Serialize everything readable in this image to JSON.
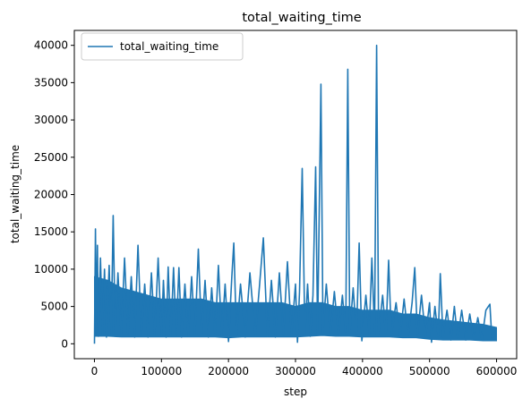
{
  "chart_data": {
    "type": "line",
    "title": "total_waiting_time",
    "xlabel": "step",
    "ylabel": "total_waiting_time",
    "xlim": [
      -30000,
      630000
    ],
    "ylim": [
      -2000,
      42000
    ],
    "xticks": [
      0,
      100000,
      200000,
      300000,
      400000,
      500000,
      600000
    ],
    "yticks": [
      0,
      5000,
      10000,
      15000,
      20000,
      25000,
      30000,
      35000,
      40000
    ],
    "grid": false,
    "legend": {
      "position": "top-left",
      "entries": [
        "total_waiting_time"
      ]
    },
    "series": [
      {
        "name": "total_waiting_time",
        "color": "#1f77b4",
        "points": [
          [
            0,
            0
          ],
          [
            1500,
            15400
          ],
          [
            3000,
            1500
          ],
          [
            4500,
            13200
          ],
          [
            6000,
            1000
          ],
          [
            9000,
            11500
          ],
          [
            12000,
            1300
          ],
          [
            15000,
            10000
          ],
          [
            18000,
            900
          ],
          [
            22000,
            10500
          ],
          [
            25000,
            1200
          ],
          [
            28000,
            17200
          ],
          [
            31000,
            1100
          ],
          [
            35000,
            9500
          ],
          [
            40000,
            1000
          ],
          [
            45000,
            11500
          ],
          [
            50000,
            1200
          ],
          [
            55000,
            9000
          ],
          [
            60000,
            900
          ],
          [
            65000,
            13200
          ],
          [
            70000,
            1100
          ],
          [
            75000,
            8000
          ],
          [
            80000,
            900
          ],
          [
            85000,
            9500
          ],
          [
            90000,
            1000
          ],
          [
            95000,
            11500
          ],
          [
            100000,
            1000
          ],
          [
            103000,
            8500
          ],
          [
            107000,
            900
          ],
          [
            110000,
            10300
          ],
          [
            114000,
            1000
          ],
          [
            118000,
            10200
          ],
          [
            122000,
            1100
          ],
          [
            126000,
            10200
          ],
          [
            130000,
            900
          ],
          [
            135000,
            8000
          ],
          [
            140000,
            1000
          ],
          [
            145000,
            9000
          ],
          [
            150000,
            1000
          ],
          [
            155000,
            12700
          ],
          [
            160000,
            1000
          ],
          [
            165000,
            8500
          ],
          [
            170000,
            900
          ],
          [
            175000,
            7500
          ],
          [
            180000,
            1000
          ],
          [
            185000,
            10500
          ],
          [
            190000,
            1000
          ],
          [
            195000,
            8000
          ],
          [
            200000,
            300
          ],
          [
            205000,
            9000
          ],
          [
            208000,
            13500
          ],
          [
            212000,
            1000
          ],
          [
            218000,
            8000
          ],
          [
            225000,
            900
          ],
          [
            232000,
            9500
          ],
          [
            240000,
            1000
          ],
          [
            246000,
            7500
          ],
          [
            252000,
            14200
          ],
          [
            258000,
            1000
          ],
          [
            264000,
            8500
          ],
          [
            270000,
            900
          ],
          [
            276000,
            9500
          ],
          [
            282000,
            1100
          ],
          [
            288000,
            11000
          ],
          [
            294000,
            1000
          ],
          [
            300000,
            8000
          ],
          [
            303000,
            200
          ],
          [
            306000,
            7000
          ],
          [
            310000,
            23500
          ],
          [
            314000,
            1200
          ],
          [
            318000,
            8000
          ],
          [
            322000,
            1000
          ],
          [
            326000,
            6500
          ],
          [
            330000,
            23700
          ],
          [
            333000,
            1300
          ],
          [
            338000,
            34800
          ],
          [
            341000,
            1400
          ],
          [
            346000,
            8000
          ],
          [
            352000,
            1200
          ],
          [
            358000,
            7000
          ],
          [
            364000,
            1100
          ],
          [
            370000,
            6500
          ],
          [
            375000,
            1200
          ],
          [
            378000,
            36800
          ],
          [
            381000,
            1400
          ],
          [
            386000,
            7500
          ],
          [
            391000,
            1100
          ],
          [
            395000,
            13500
          ],
          [
            399000,
            400
          ],
          [
            405000,
            6500
          ],
          [
            410000,
            1200
          ],
          [
            414000,
            11500
          ],
          [
            418000,
            1300
          ],
          [
            421000,
            40000
          ],
          [
            424000,
            1300
          ],
          [
            430000,
            6500
          ],
          [
            435000,
            1000
          ],
          [
            439000,
            11200
          ],
          [
            443000,
            1100
          ],
          [
            450000,
            5500
          ],
          [
            456000,
            1000
          ],
          [
            462000,
            6000
          ],
          [
            468000,
            900
          ],
          [
            474000,
            5500
          ],
          [
            478000,
            10200
          ],
          [
            482000,
            1000
          ],
          [
            488000,
            6500
          ],
          [
            494000,
            900
          ],
          [
            500000,
            5500
          ],
          [
            503000,
            200
          ],
          [
            508000,
            5000
          ],
          [
            513000,
            1000
          ],
          [
            516000,
            9400
          ],
          [
            520000,
            900
          ],
          [
            526000,
            4500
          ],
          [
            532000,
            500
          ],
          [
            537000,
            5000
          ],
          [
            542000,
            600
          ],
          [
            548000,
            4500
          ],
          [
            554000,
            500
          ],
          [
            560000,
            4000
          ],
          [
            566000,
            600
          ],
          [
            572000,
            3500
          ],
          [
            578000,
            500
          ],
          [
            584000,
            4500
          ],
          [
            590000,
            5300
          ],
          [
            593000,
            600
          ],
          [
            597000,
            1500
          ],
          [
            600000,
            1200
          ]
        ],
        "band_points": [
          [
            0,
            1000,
            9000
          ],
          [
            20000,
            1000,
            8500
          ],
          [
            40000,
            900,
            7500
          ],
          [
            60000,
            900,
            7000
          ],
          [
            80000,
            900,
            6500
          ],
          [
            100000,
            900,
            6000
          ],
          [
            120000,
            900,
            6000
          ],
          [
            140000,
            900,
            6000
          ],
          [
            160000,
            900,
            6000
          ],
          [
            180000,
            900,
            5500
          ],
          [
            200000,
            800,
            5500
          ],
          [
            220000,
            900,
            5500
          ],
          [
            240000,
            900,
            5500
          ],
          [
            260000,
            900,
            5500
          ],
          [
            280000,
            900,
            5500
          ],
          [
            300000,
            900,
            5000
          ],
          [
            320000,
            1000,
            5500
          ],
          [
            340000,
            1100,
            5500
          ],
          [
            360000,
            1000,
            5000
          ],
          [
            380000,
            1000,
            5000
          ],
          [
            400000,
            900,
            4500
          ],
          [
            420000,
            900,
            4500
          ],
          [
            440000,
            900,
            4500
          ],
          [
            460000,
            800,
            4000
          ],
          [
            480000,
            800,
            4000
          ],
          [
            500000,
            600,
            3500
          ],
          [
            520000,
            500,
            3200
          ],
          [
            540000,
            500,
            3000
          ],
          [
            560000,
            500,
            2800
          ],
          [
            580000,
            400,
            2600
          ],
          [
            600000,
            400,
            2200
          ]
        ]
      }
    ]
  }
}
